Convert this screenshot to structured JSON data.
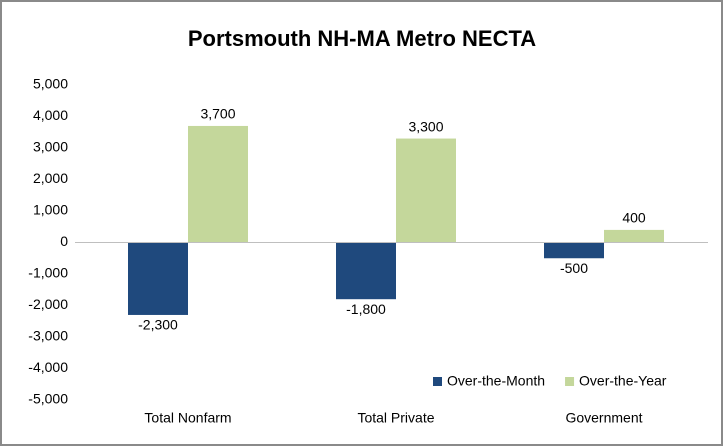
{
  "chart_data": {
    "type": "bar",
    "title": "Portsmouth NH-MA Metro NECTA",
    "categories": [
      "Total Nonfarm",
      "Total Private",
      "Government"
    ],
    "series": [
      {
        "name": "Over-the-Month",
        "color": "#1f497d",
        "values": [
          -2300,
          -1800,
          -500
        ],
        "value_labels": [
          "-2,300",
          "-1,800",
          "-500"
        ]
      },
      {
        "name": "Over-the-Year",
        "color": "#c4d79b",
        "values": [
          3700,
          3300,
          400
        ],
        "value_labels": [
          "3,700",
          "3,300",
          "400"
        ]
      }
    ],
    "ylim": [
      -5000,
      5000
    ],
    "yticks": [
      {
        "value": 5000,
        "label": "5,000"
      },
      {
        "value": 4000,
        "label": "4,000"
      },
      {
        "value": 3000,
        "label": "3,000"
      },
      {
        "value": 2000,
        "label": "2,000"
      },
      {
        "value": 1000,
        "label": "1,000"
      },
      0,
      {
        "value": -1000,
        "label": "-1,000"
      },
      {
        "value": -2000,
        "label": "-2,000"
      },
      {
        "value": -3000,
        "label": "-3,000"
      },
      {
        "value": -4000,
        "label": "-4,000"
      },
      {
        "value": -5000,
        "label": "-5,000"
      }
    ],
    "grid": false,
    "legend": "bottom-right"
  }
}
